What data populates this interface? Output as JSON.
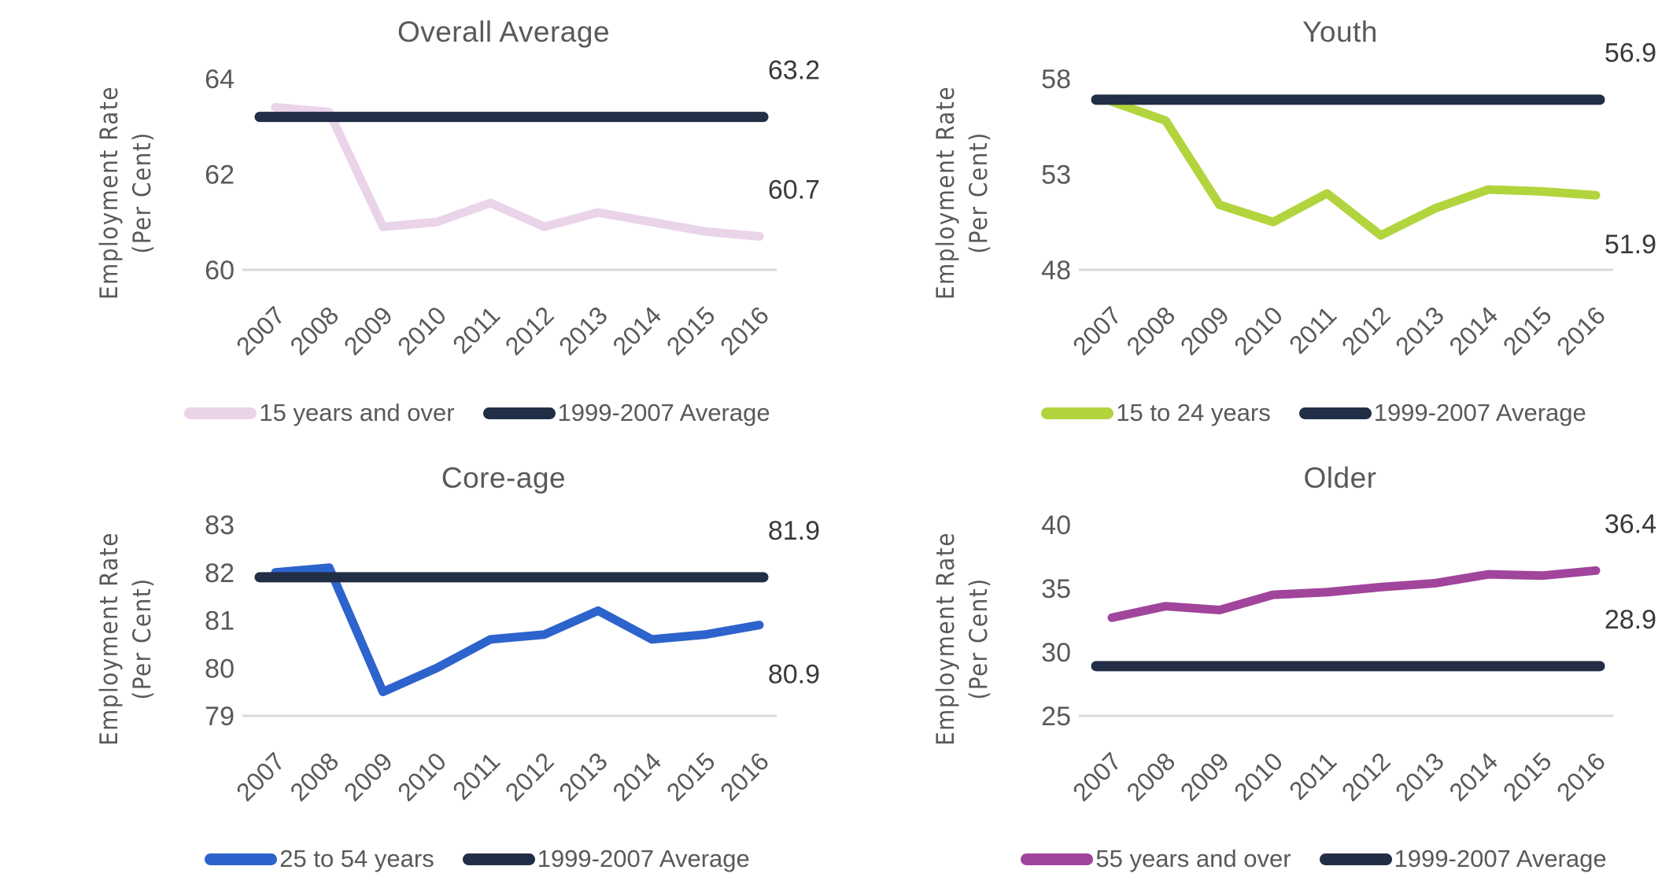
{
  "figure_title": "",
  "colors": {
    "axis_text": "#595959",
    "title_text": "#595959",
    "data_label_text": "#3a3a3a",
    "gridline": "#d9d9d9",
    "average_line": "#222e45"
  },
  "chart_data": [
    {
      "type": "line",
      "title": "Overall Average",
      "ylabel": [
        "Employment Rate",
        "(Per Cent)"
      ],
      "categories": [
        "2007",
        "2008",
        "2009",
        "2010",
        "2011",
        "2012",
        "2013",
        "2014",
        "2015",
        "2016"
      ],
      "yticks": [
        64,
        62,
        60
      ],
      "ylim": [
        60,
        64
      ],
      "grid": "bottom-axis-only",
      "legend_position": "bottom",
      "series": [
        {
          "name": "15 years and over",
          "color": "#ead4ea",
          "values": [
            63.4,
            63.3,
            60.9,
            61.0,
            61.4,
            60.9,
            61.2,
            61.0,
            60.8,
            60.7
          ]
        },
        {
          "name": "1999-2007 Average",
          "color": "#222e45",
          "value": 63.2
        }
      ],
      "annotations": [
        {
          "text": "63.2",
          "value": 63.2,
          "placement": "above"
        },
        {
          "text": "60.7",
          "value": 60.7,
          "placement": "above"
        }
      ]
    },
    {
      "type": "line",
      "title": "Youth",
      "ylabel": [
        "Employment Rate",
        "(Per Cent)"
      ],
      "categories": [
        "2007",
        "2008",
        "2009",
        "2010",
        "2011",
        "2012",
        "2013",
        "2014",
        "2015",
        "2016"
      ],
      "yticks": [
        58,
        53,
        48
      ],
      "ylim": [
        48,
        58
      ],
      "grid": "bottom-axis-only",
      "legend_position": "bottom",
      "series": [
        {
          "name": "15 to 24 years",
          "color": "#b2d43c",
          "values": [
            56.8,
            55.8,
            51.4,
            50.5,
            52.0,
            49.8,
            51.2,
            52.2,
            52.1,
            51.9
          ]
        },
        {
          "name": "1999-2007 Average",
          "color": "#222e45",
          "value": 56.9
        }
      ],
      "annotations": [
        {
          "text": "56.9",
          "value": 56.9,
          "placement": "above"
        },
        {
          "text": "51.9",
          "value": 51.9,
          "placement": "below"
        }
      ]
    },
    {
      "type": "line",
      "title": "Core-age",
      "ylabel": [
        "Employment Rate",
        "(Per Cent)"
      ],
      "categories": [
        "2007",
        "2008",
        "2009",
        "2010",
        "2011",
        "2012",
        "2013",
        "2014",
        "2015",
        "2016"
      ],
      "yticks": [
        83,
        82,
        81,
        80,
        79
      ],
      "ylim": [
        79,
        83
      ],
      "grid": "bottom-axis-only",
      "legend_position": "bottom",
      "series": [
        {
          "name": "25 to 54 years",
          "color": "#2d63cc",
          "values": [
            82.0,
            82.1,
            79.5,
            80.0,
            80.6,
            80.7,
            81.2,
            80.6,
            80.7,
            80.9
          ]
        },
        {
          "name": "1999-2007 Average",
          "color": "#222e45",
          "value": 81.9
        }
      ],
      "annotations": [
        {
          "text": "81.9",
          "value": 81.9,
          "placement": "above"
        },
        {
          "text": "80.9",
          "value": 80.9,
          "placement": "below"
        }
      ]
    },
    {
      "type": "line",
      "title": "Older",
      "ylabel": [
        "Employment Rate",
        "(Per Cent)"
      ],
      "categories": [
        "2007",
        "2008",
        "2009",
        "2010",
        "2011",
        "2012",
        "2013",
        "2014",
        "2015",
        "2016"
      ],
      "yticks": [
        40,
        35,
        30,
        25
      ],
      "ylim": [
        25,
        40
      ],
      "grid": "bottom-axis-only",
      "legend_position": "bottom",
      "series": [
        {
          "name": "55 years and over",
          "color": "#a0459b",
          "values": [
            32.7,
            33.6,
            33.3,
            34.5,
            34.7,
            35.1,
            35.4,
            36.1,
            36.0,
            36.4
          ]
        },
        {
          "name": "1999-2007 Average",
          "color": "#222e45",
          "value": 28.9
        }
      ],
      "annotations": [
        {
          "text": "36.4",
          "value": 36.4,
          "placement": "above"
        },
        {
          "text": "28.9",
          "value": 28.9,
          "placement": "above"
        }
      ]
    }
  ]
}
